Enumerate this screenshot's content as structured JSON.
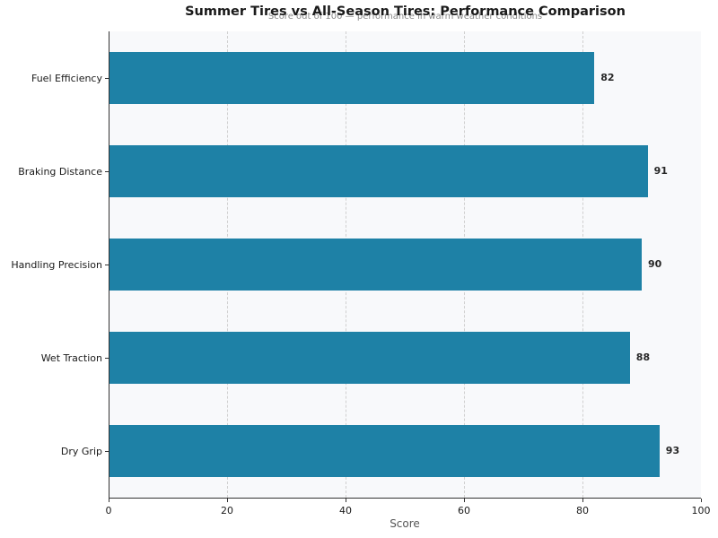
{
  "chart_data": {
    "type": "bar",
    "orientation": "horizontal",
    "title": "Summer Tires vs All-Season Tires: Performance Comparison",
    "subtitle": "Score out of 100 — performance in warm weather conditions",
    "xlabel": "Score",
    "ylabel": "",
    "xlim": [
      0,
      100
    ],
    "xticks": [
      "0",
      "20",
      "40",
      "60",
      "80",
      "100"
    ],
    "categories": [
      "Fuel Efficiency",
      "Braking Distance",
      "Handling Precision",
      "Wet Traction",
      "Dry Grip"
    ],
    "values": [
      82,
      91,
      90,
      88,
      93
    ],
    "value_labels": [
      "82",
      "91",
      "90",
      "88",
      "93"
    ],
    "grid": {
      "x": true,
      "y": false,
      "style": "dashed"
    },
    "legend": null,
    "colors": {
      "bar": "#1e81a6",
      "plot_bg": "#f8f9fb"
    }
  }
}
